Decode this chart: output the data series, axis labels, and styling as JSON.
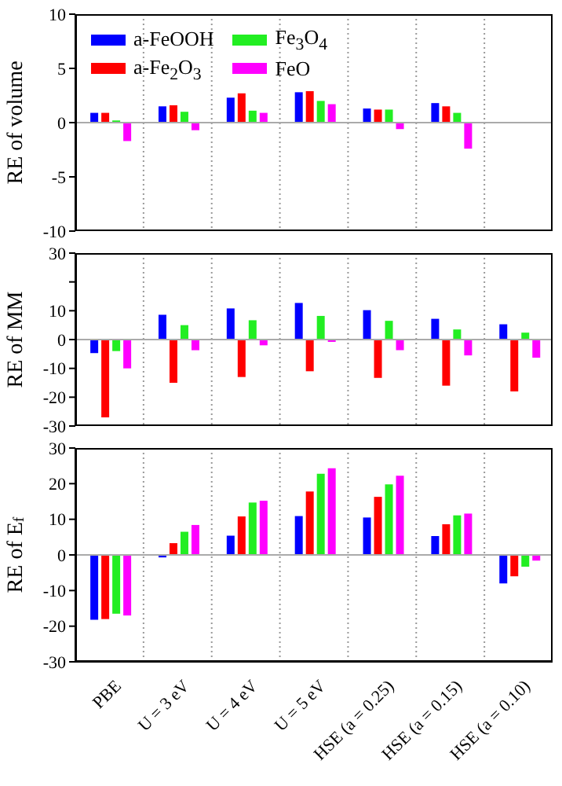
{
  "chart_data": [
    {
      "type": "bar",
      "ylabel": "RE of volume",
      "series": [
        {
          "name": "a-FeOOH",
          "color": "#0000ff",
          "values": [
            0.9,
            1.5,
            2.3,
            2.8,
            1.3,
            1.8,
            null
          ]
        },
        {
          "name": "a-Fe$_{2}$O$_{3}$",
          "color": "#ff0000",
          "values": [
            0.9,
            1.6,
            2.7,
            2.9,
            1.2,
            1.5,
            null
          ]
        },
        {
          "name": "Fe$_{3}$O$_{4}$",
          "color": "#22ee22",
          "values": [
            0.2,
            1.0,
            1.1,
            2.0,
            1.2,
            0.9,
            null
          ]
        },
        {
          "name": "FeO",
          "color": "#ff00ff",
          "values": [
            -1.7,
            -0.7,
            0.9,
            1.7,
            -0.6,
            -2.4,
            null
          ]
        }
      ],
      "ylim": [
        -10,
        10
      ],
      "yticks": [
        -10,
        -5,
        0,
        5,
        10
      ],
      "grid": "x",
      "legend": "top left",
      "tick_labels": "y",
      "ref_lines": [
        {
          "axis": "y",
          "value": 0,
          "color": "#aaaaaa"
        }
      ]
    },
    {
      "type": "bar",
      "ylabel": "RE of MM",
      "series": [
        {
          "color": "#0000ff",
          "values": [
            -4.7,
            8.6,
            10.8,
            12.7,
            10.2,
            7.2,
            5.3
          ]
        },
        {
          "color": "#ff0000",
          "values": [
            -27,
            -15,
            -13,
            -11,
            -13.3,
            -16,
            -18
          ]
        },
        {
          "color": "#22ee22",
          "values": [
            -4,
            5,
            6.7,
            8.2,
            6.5,
            3.5,
            2.4
          ]
        },
        {
          "color": "#ff00ff",
          "values": [
            -10,
            -3.7,
            -2,
            -0.8,
            -3.7,
            -5.5,
            -6.3
          ]
        }
      ],
      "ylim": [
        -30,
        30
      ],
      "yticks": [
        -30,
        -20,
        -10,
        0,
        10,
        {
          "value": 20,
          "label": null
        },
        30
      ],
      "grid": "x",
      "tick_labels": "y",
      "ref_lines": [
        {
          "axis": "y",
          "value": 0,
          "color": "#aaaaaa"
        }
      ]
    },
    {
      "type": "bar",
      "ylabel": "RE of E$_{f}$",
      "categories": [
        "PBE",
        "U = 3 eV",
        "U = 4 eV",
        "U = 5 eV",
        "HSE (a = 0.25)",
        "HSE (a = 0.15)",
        "HSE (a = 0.10)"
      ],
      "series": [
        {
          "color": "#0000ff",
          "values": [
            -18.2,
            -0.7,
            5.4,
            10.9,
            10.5,
            5.3,
            -8
          ]
        },
        {
          "color": "#ff0000",
          "values": [
            -18,
            3.3,
            10.8,
            17.8,
            16.3,
            8.6,
            -6
          ]
        },
        {
          "color": "#22ee22",
          "values": [
            -16.5,
            6.5,
            14.7,
            22.8,
            19.8,
            11.1,
            -3.3
          ]
        },
        {
          "color": "#ff00ff",
          "values": [
            -17,
            8.4,
            15.2,
            24.3,
            22.2,
            11.6,
            -1.6
          ]
        }
      ],
      "ylim": [
        -30,
        30
      ],
      "yticks": [
        -30,
        -20,
        -10,
        0,
        10,
        20,
        30
      ],
      "grid": "x",
      "ref_lines": [
        {
          "axis": "y",
          "value": 0,
          "color": "#aaaaaa"
        }
      ]
    }
  ]
}
